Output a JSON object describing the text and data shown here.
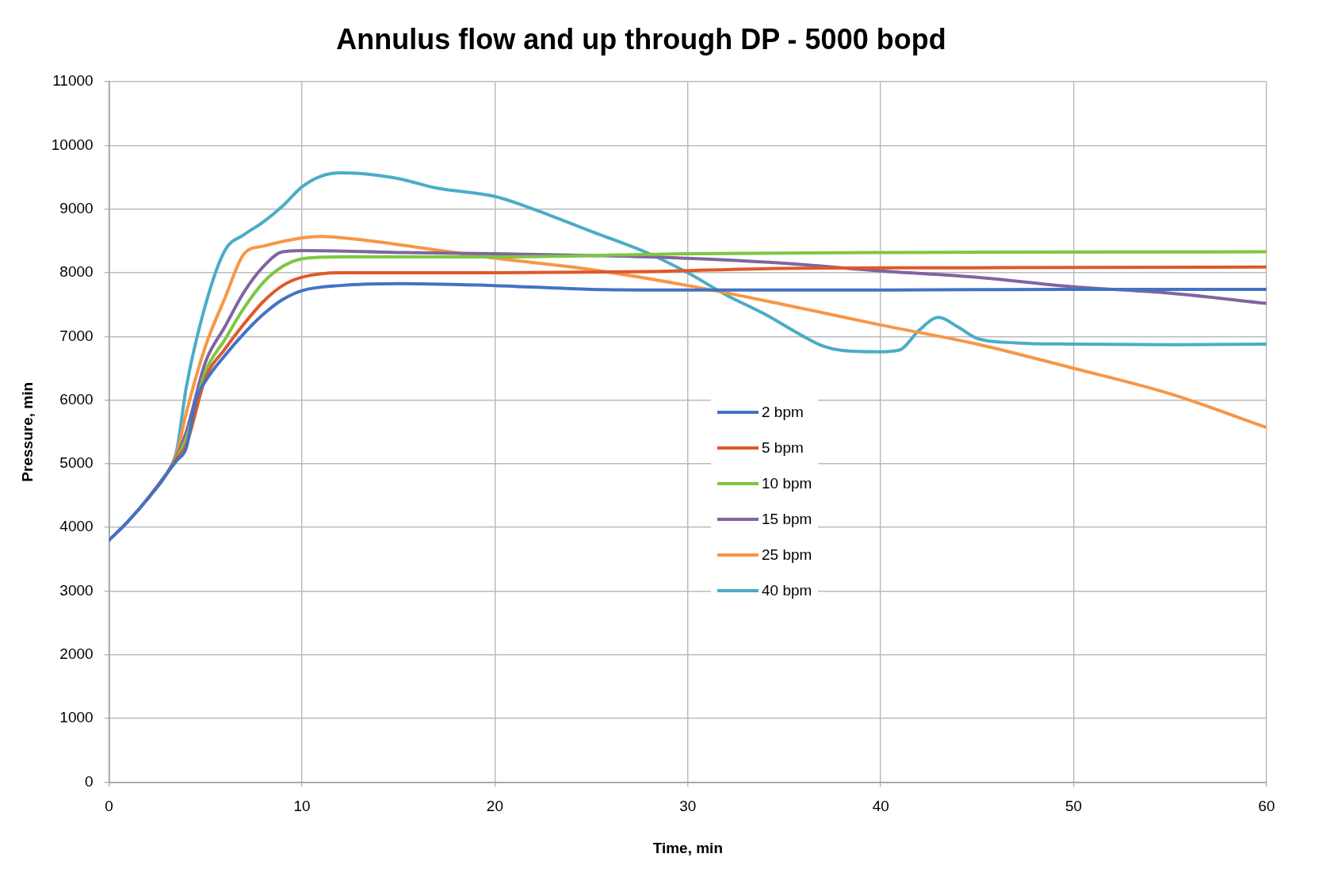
{
  "chart_data": {
    "type": "line",
    "title": "Annulus flow and up through DP - 5000 bopd",
    "xlabel": "Time, min",
    "ylabel": "Pressure, min",
    "xlim": [
      0,
      60
    ],
    "xticks": [
      0,
      10,
      20,
      30,
      40,
      50,
      60
    ],
    "ylim": [
      0,
      11000
    ],
    "yticks": [
      0,
      1000,
      2000,
      3000,
      4000,
      5000,
      6000,
      7000,
      8000,
      9000,
      10000,
      11000
    ],
    "grid": true,
    "legend": "right",
    "marker": "none",
    "line_style": "solid",
    "series": [
      {
        "name": "2 bpm",
        "color": "#4472c4",
        "x": [
          0,
          1,
          2,
          3,
          3.5,
          4,
          4.5,
          5,
          6,
          7,
          8,
          9,
          10,
          12,
          15,
          20,
          25,
          30,
          40,
          50,
          60
        ],
        "values": [
          3800,
          4100,
          4450,
          4850,
          5050,
          5250,
          6000,
          6300,
          6700,
          7050,
          7350,
          7580,
          7720,
          7800,
          7830,
          7800,
          7740,
          7730,
          7730,
          7740,
          7740
        ]
      },
      {
        "name": "5 bpm",
        "color": "#e0582a",
        "x": [
          2,
          3,
          3.5,
          4,
          5,
          6,
          7,
          8,
          9,
          10,
          12,
          20,
          28,
          35,
          45,
          60
        ],
        "values": [
          4450,
          4850,
          5080,
          5300,
          6350,
          6800,
          7200,
          7550,
          7800,
          7930,
          8000,
          8000,
          8020,
          8070,
          8080,
          8090
        ]
      },
      {
        "name": "10 bpm",
        "color": "#7dc740",
        "x": [
          3,
          3.5,
          4,
          5,
          6,
          7,
          8,
          9,
          10,
          12,
          20,
          30,
          40,
          60
        ],
        "values": [
          4850,
          5100,
          5400,
          6450,
          6950,
          7450,
          7850,
          8100,
          8220,
          8250,
          8250,
          8300,
          8320,
          8330
        ]
      },
      {
        "name": "15 bpm",
        "color": "#8064a2",
        "x": [
          0,
          1,
          2,
          3,
          3.5,
          4,
          5,
          6,
          7,
          8,
          9,
          10,
          15,
          20,
          28,
          35,
          40,
          45,
          50,
          55,
          60
        ],
        "values": [
          3800,
          4100,
          4450,
          4850,
          5120,
          5500,
          6600,
          7150,
          7700,
          8100,
          8330,
          8350,
          8320,
          8300,
          8250,
          8150,
          8030,
          7930,
          7780,
          7680,
          7520
        ]
      },
      {
        "name": "25 bpm",
        "color": "#f79646",
        "x": [
          3,
          3.5,
          4,
          5,
          6,
          7,
          8,
          10,
          11,
          13,
          16,
          20,
          25,
          30,
          35,
          40,
          45,
          50,
          55,
          60
        ],
        "values": [
          4850,
          5150,
          5800,
          6850,
          7600,
          8300,
          8420,
          8550,
          8570,
          8520,
          8400,
          8230,
          8050,
          7800,
          7500,
          7180,
          6880,
          6500,
          6100,
          5570
        ]
      },
      {
        "name": "40 bpm",
        "color": "#4bacc6",
        "x": [
          2,
          3,
          3.5,
          4,
          5,
          6,
          7,
          8,
          9,
          10,
          11,
          12,
          13,
          15,
          17,
          20,
          22,
          25,
          28,
          30,
          32,
          34,
          36,
          37,
          38,
          40,
          41,
          42,
          43,
          44,
          45,
          47,
          50,
          55,
          60
        ],
        "values": [
          4450,
          4850,
          5200,
          6200,
          7500,
          8350,
          8600,
          8800,
          9050,
          9350,
          9520,
          9570,
          9560,
          9480,
          9330,
          9200,
          9000,
          8650,
          8300,
          8000,
          7650,
          7350,
          7000,
          6850,
          6780,
          6760,
          6790,
          7100,
          7300,
          7150,
          6970,
          6900,
          6880,
          6870,
          6880
        ]
      }
    ]
  }
}
